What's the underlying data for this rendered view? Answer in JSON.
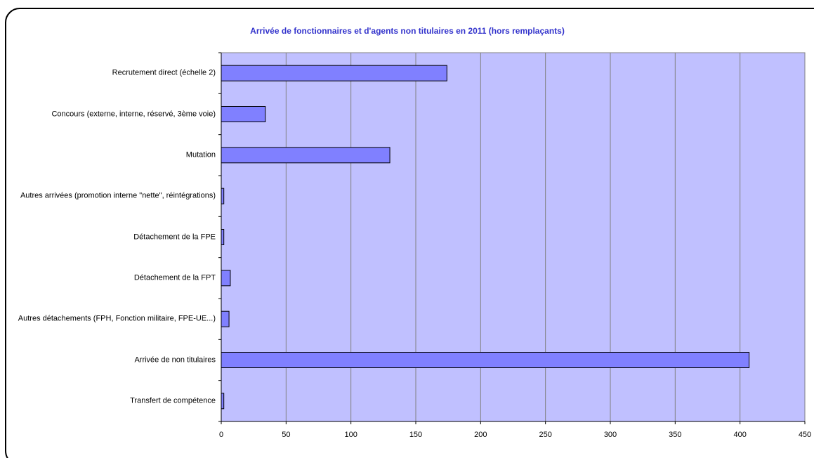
{
  "chart_data": {
    "type": "bar",
    "orientation": "horizontal",
    "title": "Arrivée de fonctionnaires et d'agents non titulaires en 2011 (hors remplaçants)",
    "categories": [
      "Recrutement direct (échelle 2)",
      "Concours (externe, interne, réservé, 3ème voie)",
      "Mutation",
      "Autres arrivées (promotion interne \"nette\", réintégrations)",
      "Détachement de la FPE",
      "Détachement de la FPT",
      "Autres détachements (FPH, Fonction militaire, FPE-UE...)",
      "Arrivée de non titulaires",
      "Transfert de compétence"
    ],
    "values": [
      174,
      34,
      130,
      2,
      2,
      7,
      6,
      407,
      2
    ],
    "color": "#8080ff",
    "plot_background": "#c0c0ff",
    "xlim": [
      0,
      450
    ],
    "xticks": [
      0,
      50,
      100,
      150,
      200,
      250,
      300,
      350,
      400,
      450
    ],
    "grid": true
  }
}
